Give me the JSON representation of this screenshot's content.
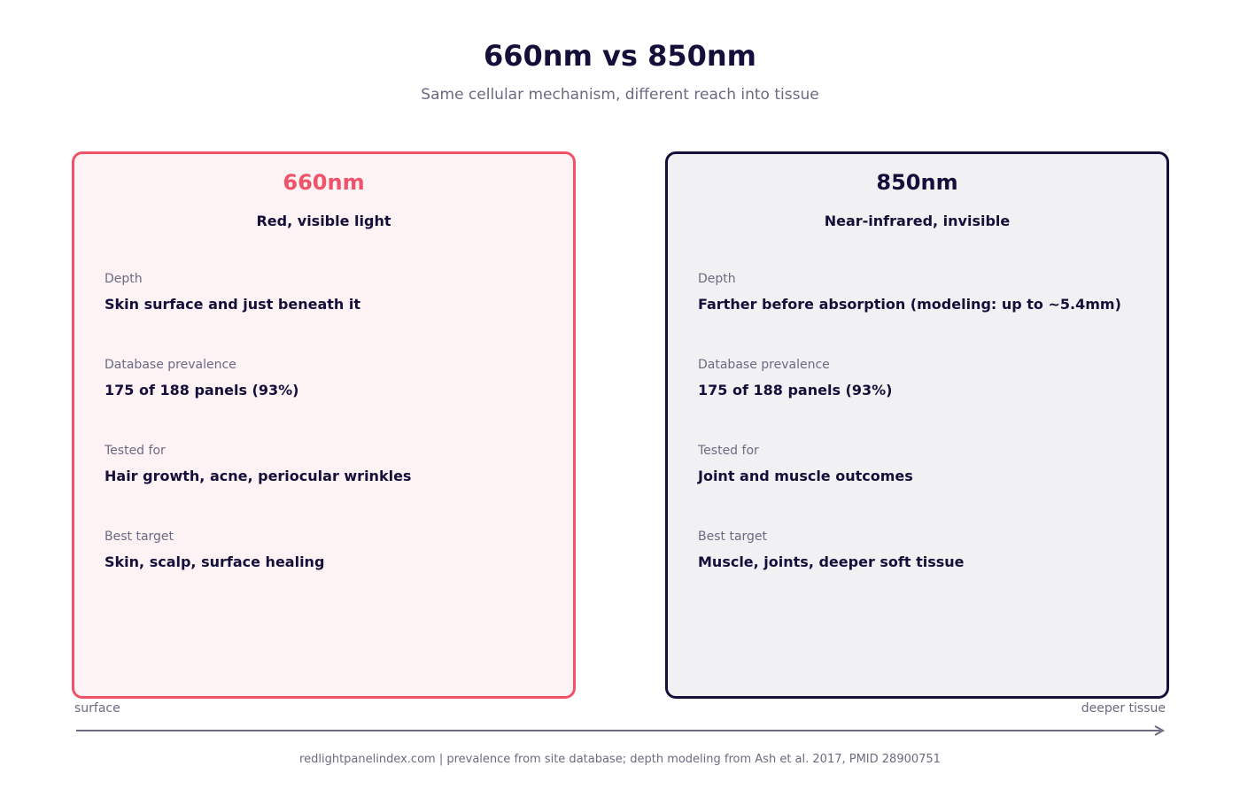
{
  "header": {
    "title": "660nm vs 850nm",
    "subtitle": "Same cellular mechanism, different reach into tissue"
  },
  "cards": [
    {
      "title": "660nm",
      "subtitle": "Red, visible light",
      "fields": [
        {
          "label": "Depth",
          "value": "Skin surface and just beneath it"
        },
        {
          "label": "Database prevalence",
          "value": "175 of 188 panels (93%)"
        },
        {
          "label": "Tested for",
          "value": "Hair growth, acne, periocular wrinkles"
        },
        {
          "label": "Best target",
          "value": "Skin, scalp, surface healing"
        }
      ],
      "accent_color": "#f0526a"
    },
    {
      "title": "850nm",
      "subtitle": "Near-infrared, invisible",
      "fields": [
        {
          "label": "Depth",
          "value": "Farther before absorption (modeling: up to ~5.4mm)"
        },
        {
          "label": "Database prevalence",
          "value": "175 of 188 panels (93%)"
        },
        {
          "label": "Tested for",
          "value": "Joint and muscle outcomes"
        },
        {
          "label": "Best target",
          "value": "Muscle, joints, deeper soft tissue"
        }
      ],
      "accent_color": "#14103a"
    }
  ],
  "axis": {
    "left_label": "surface",
    "right_label": "deeper tissue"
  },
  "footer": {
    "text": "redlightpanelindex.com | prevalence from site database; depth modeling from Ash et al. 2017, PMID 28900751"
  }
}
